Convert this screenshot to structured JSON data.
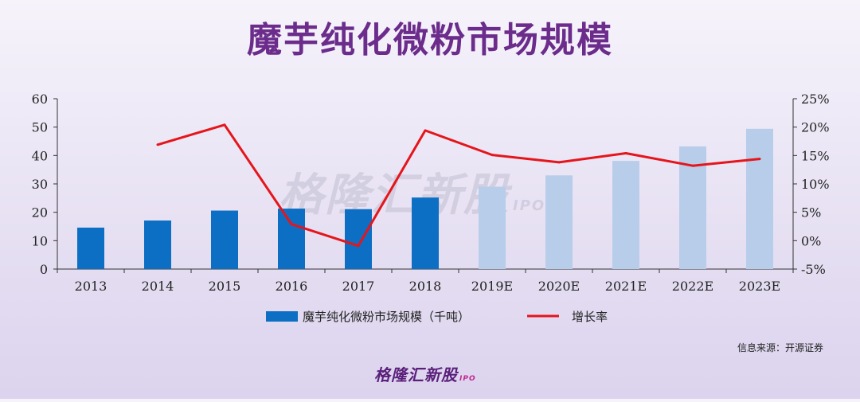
{
  "title": "魔芋纯化微粉市场规模",
  "source": "信息来源：开源证券",
  "brand": {
    "name": "格隆汇新股",
    "suffix": "IPO"
  },
  "watermark": {
    "name": "格隆汇新股",
    "suffix": "IPO"
  },
  "colors": {
    "actual_bar": "#0d6fc4",
    "estimate_bar": "#b8cdea",
    "growth_line": "#e5151b"
  },
  "chart_data": {
    "type": "bar",
    "categories": [
      "2013",
      "2014",
      "2015",
      "2016",
      "2017",
      "2018",
      "2019E",
      "2020E",
      "2021E",
      "2022E",
      "2023E"
    ],
    "series": [
      {
        "name": "魔芋纯化微粉市场规模（千吨）",
        "axis": "left",
        "type": "bar",
        "values": [
          14.6,
          17.1,
          20.6,
          21.3,
          21.1,
          25.2,
          29.0,
          33.0,
          38.1,
          43.2,
          49.4
        ],
        "estimated_from_index": 6
      },
      {
        "name": "增长率",
        "axis": "right",
        "type": "line",
        "values": [
          null,
          16.9,
          20.4,
          2.9,
          -0.9,
          19.4,
          15.1,
          13.8,
          15.4,
          13.2,
          14.4
        ]
      }
    ],
    "y_left": {
      "ylim": [
        0,
        60
      ],
      "ticks": [
        "0",
        "10",
        "20",
        "30",
        "40",
        "50",
        "60"
      ]
    },
    "y_right": {
      "ylim": [
        -5,
        25
      ],
      "ticks": [
        "-5%",
        "0%",
        "5%",
        "10%",
        "15%",
        "20%",
        "25%"
      ]
    },
    "legend": {
      "placement": "bottom",
      "items": [
        "魔芋纯化微粉市场规模（千吨）",
        "增长率"
      ]
    },
    "grid": false
  }
}
